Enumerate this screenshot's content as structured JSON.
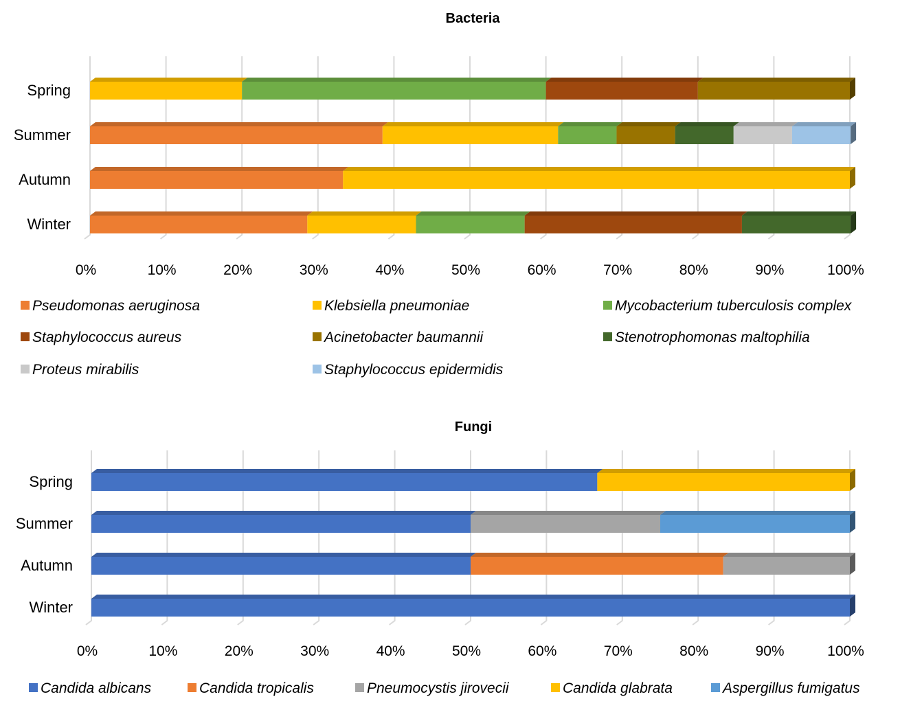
{
  "chart_data": [
    {
      "type": "bar",
      "orientation": "horizontal",
      "stacked": "100%",
      "title": "Bacteria",
      "xlabel": "",
      "ylabel": "",
      "xlim": [
        0,
        100
      ],
      "x_ticks": [
        "0%",
        "10%",
        "20%",
        "30%",
        "40%",
        "50%",
        "60%",
        "70%",
        "80%",
        "90%",
        "100%"
      ],
      "grid": true,
      "legend_position": "bottom",
      "categories": [
        "Spring",
        "Summer",
        "Autumn",
        "Winter"
      ],
      "series": [
        {
          "name": "Pseudomonas aeruginosa",
          "color": "#ED7D31",
          "values": [
            0,
            38.5,
            33.3,
            28.6
          ]
        },
        {
          "name": "Klebsiella pneumoniae",
          "color": "#FFC000",
          "values": [
            20,
            23.1,
            66.7,
            14.3
          ]
        },
        {
          "name": "Mycobacterium tuberculosis complex",
          "color": "#70AD47",
          "values": [
            40,
            7.7,
            0,
            14.3
          ]
        },
        {
          "name": "Staphylococcus aureus",
          "color": "#9E480E",
          "values": [
            20,
            0,
            0,
            28.6
          ]
        },
        {
          "name": "Acinetobacter baumannii",
          "color": "#997300",
          "values": [
            20,
            7.7,
            0,
            0
          ]
        },
        {
          "name": "Stenotrophomonas maltophilia",
          "color": "#43682B",
          "values": [
            0,
            7.7,
            0,
            14.3
          ]
        },
        {
          "name": "Proteus mirabilis",
          "color": "#C9C9C9",
          "values": [
            0,
            7.7,
            0,
            0
          ]
        },
        {
          "name": "Staphylococcus epidermidis",
          "color": "#9DC3E6",
          "values": [
            0,
            7.7,
            0,
            0
          ]
        }
      ]
    },
    {
      "type": "bar",
      "orientation": "horizontal",
      "stacked": "100%",
      "title": "Fungi",
      "xlabel": "",
      "ylabel": "",
      "xlim": [
        0,
        100
      ],
      "x_ticks": [
        "0%",
        "10%",
        "20%",
        "30%",
        "40%",
        "50%",
        "60%",
        "70%",
        "80%",
        "90%",
        "100%"
      ],
      "grid": true,
      "legend_position": "bottom",
      "categories": [
        "Spring",
        "Summer",
        "Autumn",
        "Winter"
      ],
      "series": [
        {
          "name": "Candida albicans",
          "color": "#4472C4",
          "values": [
            66.7,
            50,
            50,
            100
          ]
        },
        {
          "name": "Candida tropicalis",
          "color": "#ED7D31",
          "values": [
            0,
            0,
            33.3,
            0
          ]
        },
        {
          "name": "Pneumocystis jirovecii",
          "color": "#A5A5A5",
          "values": [
            0,
            25,
            16.7,
            0
          ]
        },
        {
          "name": "Candida glabrata",
          "color": "#FFC000",
          "values": [
            33.3,
            0,
            0,
            0
          ]
        },
        {
          "name": "Aspergillus fumigatus",
          "color": "#5B9BD5",
          "values": [
            0,
            25,
            0,
            0
          ]
        }
      ]
    }
  ]
}
